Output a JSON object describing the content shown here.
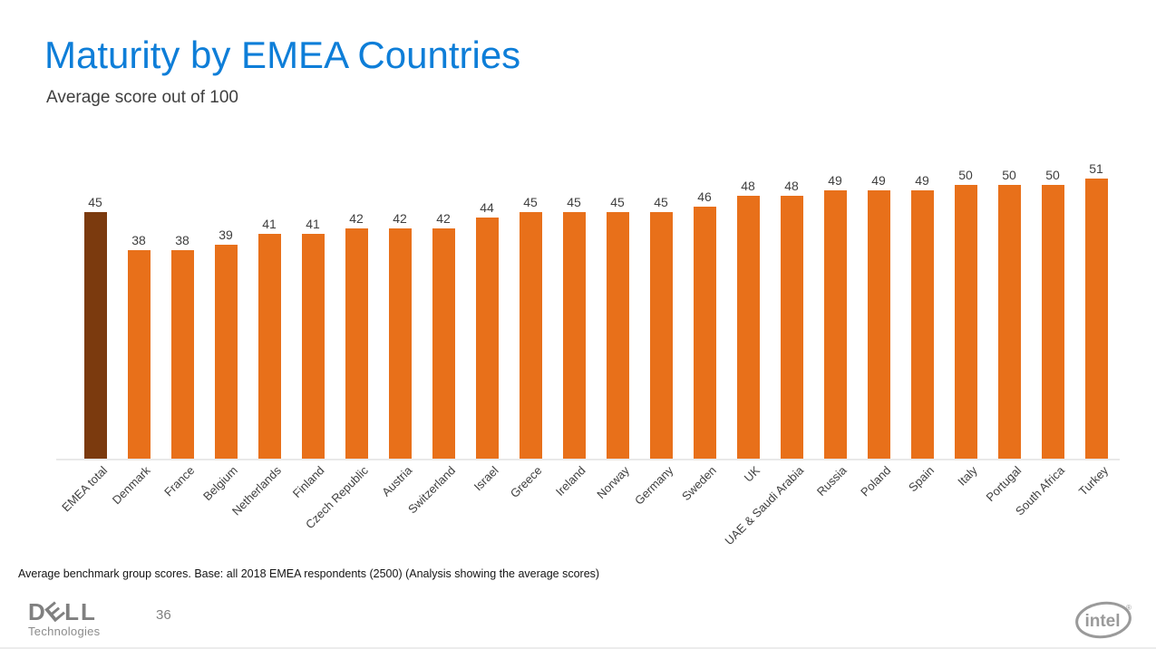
{
  "header": {
    "title": "Maturity by EMEA Countries",
    "subtitle": "Average score out of 100"
  },
  "chart_data": {
    "type": "bar",
    "title": "Maturity by EMEA Countries",
    "subtitle": "Average score out of 100",
    "xlabel": "",
    "ylabel": "Average score out of 100",
    "ylim": [
      0,
      55
    ],
    "grid": false,
    "legend": false,
    "data_labels": true,
    "categories": [
      "EMEA total",
      "Denmark",
      "France",
      "Belgium",
      "Netherlands",
      "Finland",
      "Czech Republic",
      "Austria",
      "Switzerland",
      "Israel",
      "Greece",
      "Ireland",
      "Norway",
      "Germany",
      "Sweden",
      "UK",
      "UAE & Saudi Arabia",
      "Russia",
      "Poland",
      "Spain",
      "Italy",
      "Portugal",
      "South Africa",
      "Turkey"
    ],
    "values": [
      45,
      38,
      38,
      39,
      41,
      41,
      42,
      42,
      42,
      44,
      45,
      45,
      45,
      45,
      46,
      48,
      48,
      49,
      49,
      49,
      50,
      50,
      50,
      51
    ],
    "bar_color": "#E8701A",
    "highlight_index": 0,
    "highlight_color": "#7B3A0E"
  },
  "footnote": "Average benchmark group scores. Base: all 2018 EMEA respondents (2500) (Analysis showing the average scores)",
  "footer": {
    "page_number": "36",
    "dell_logo": {
      "part_d": "D",
      "part_e": "E",
      "part_ll": "LL",
      "subtext": "Technologies"
    },
    "intel_logo": {
      "text": "intel",
      "registered": "®"
    }
  },
  "colors": {
    "title_blue": "#0E7ED8",
    "bar_orange": "#E8701A",
    "bar_brown": "#7B3A0E",
    "text_dark": "#3F3F3F",
    "logo_gray": "#9a9a9a",
    "axis_line": "#E9E9E9"
  }
}
